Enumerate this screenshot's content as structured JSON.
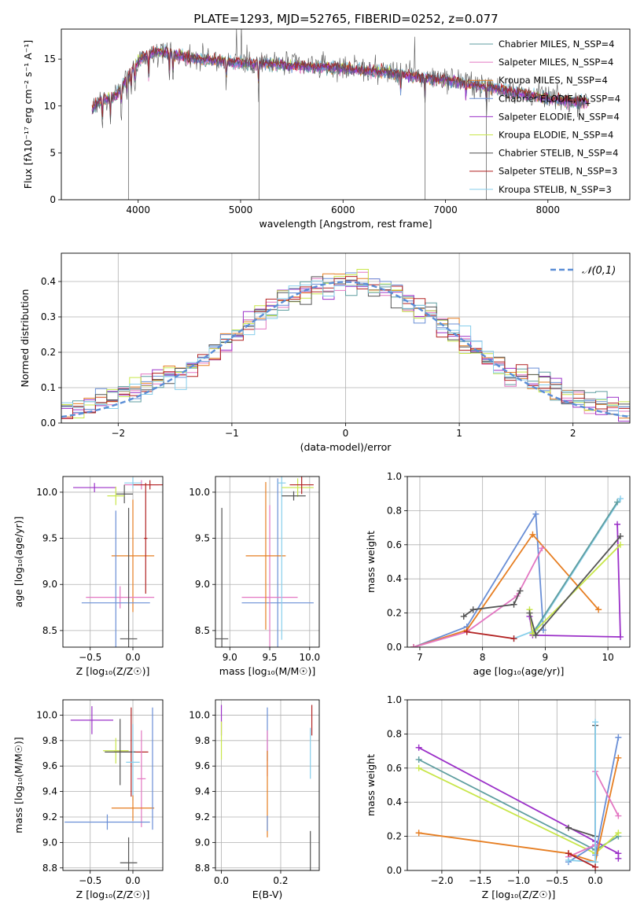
{
  "figure_title": "PLATE=1293, MJD=52765, FIBERID=0252, z=0.077",
  "colors": {
    "series": [
      "#5f9ea0",
      "#e377c2",
      "#e67e22",
      "#6a8fd6",
      "#9b30c8",
      "#c8e64a",
      "#555555",
      "#b22222",
      "#87ceeb"
    ],
    "normal": "#5b8ed6"
  },
  "chart_data": [
    {
      "id": "spectrum",
      "type": "line",
      "xlabel": "wavelength [Angstrom, rest frame]",
      "ylabel": "Flux [fλ10⁻¹⁷ erg cm⁻² s⁻¹ A⁻¹]",
      "xlim": [
        3250,
        8800
      ],
      "ylim": [
        0,
        18.2
      ],
      "xticks": [
        4000,
        5000,
        6000,
        7000,
        8000
      ],
      "yticks": [
        0,
        5,
        10,
        15
      ],
      "grid": false,
      "legend_position": "upper-right",
      "legend": [
        "Chabrier MILES, N_SSP=4",
        "Salpeter MILES, N_SSP=4",
        "Kroupa MILES, N_SSP=4",
        "Chabrier ELODIE, N_SSP=4",
        "Salpeter ELODIE, N_SSP=4",
        "Kroupa ELODIE, N_SSP=4",
        "Chabrier STELIB, N_SSP=4",
        "Salpeter STELIB, N_SSP=3",
        "Kroupa STELIB, N_SSP=3"
      ],
      "continuum": {
        "x": [
          3550,
          3620,
          3700,
          3800,
          3900,
          4000,
          4100,
          4200,
          4300,
          4400,
          4600,
          4800,
          5000,
          5200,
          5400,
          5600,
          5800,
          6000,
          6200,
          6400,
          6600,
          6800,
          7000,
          7200,
          7400,
          7600,
          7800,
          8000,
          8200,
          8400
        ],
        "y": [
          9.6,
          10.5,
          10.8,
          11.2,
          13.2,
          14.8,
          15.5,
          15.8,
          15.6,
          15.3,
          15.0,
          14.8,
          14.6,
          14.5,
          14.4,
          14.2,
          14.1,
          14.0,
          13.8,
          13.6,
          13.3,
          13.0,
          12.8,
          12.4,
          12.0,
          11.6,
          11.2,
          10.8,
          10.5,
          10.4
        ]
      },
      "absorption_lines": [
        3650,
        3730,
        3835,
        3890,
        3933,
        3968,
        4102,
        4305,
        4340,
        4861,
        5175,
        6563,
        6800,
        7200,
        7400
      ],
      "emission_lines": [
        4959,
        5007,
        6563,
        6700,
        7200
      ]
    },
    {
      "id": "residuals",
      "type": "line",
      "xlabel": "(data-model)/error",
      "ylabel": "Normed distribution",
      "xlim": [
        -2.5,
        2.5
      ],
      "ylim": [
        0,
        0.48
      ],
      "xticks": [
        -2,
        -1,
        0,
        1,
        2
      ],
      "yticks": [
        0.0,
        0.1,
        0.2,
        0.3,
        0.4
      ],
      "grid": true,
      "legend": [
        "𝒩(0,1)"
      ],
      "legend_position": "upper-right"
    },
    {
      "id": "age_vs_Z",
      "type": "scatter",
      "xlabel": "Z [log₁₀(Z/Z☉)]",
      "ylabel": "age  [log₁₀(age/yr)]",
      "xlim": [
        -0.82,
        0.35
      ],
      "ylim": [
        8.32,
        10.17
      ],
      "xticks": [
        -0.5,
        0.0
      ],
      "yticks": [
        8.5,
        9.0,
        9.5,
        10.0
      ],
      "grid": true,
      "points": [
        {
          "s": 4,
          "x": -0.45,
          "y": 10.05,
          "xerr": 0.25,
          "yerr": 0.05
        },
        {
          "s": 1,
          "x": 0.1,
          "y": 10.08,
          "xerr": 0.2,
          "yerr": 0.05
        },
        {
          "s": 7,
          "x": 0.2,
          "y": 10.08,
          "xerr": 0.2,
          "yerr": 0.05
        },
        {
          "s": 6,
          "x": -0.1,
          "y": 9.98,
          "xerr": 0.1,
          "yerr": 0.1
        },
        {
          "s": 5,
          "x": -0.2,
          "y": 9.96,
          "xerr": 0.1,
          "yerr": 0.1
        },
        {
          "s": 8,
          "x": 0.0,
          "y": 10.1,
          "xerr": 0.1,
          "yerr": 0.06
        },
        {
          "s": 2,
          "x": 0.0,
          "y": 9.31,
          "xerr": 0.25,
          "yerr": 0.61
        },
        {
          "s": 1,
          "x": -0.15,
          "y": 8.86,
          "xerr": 0.4,
          "yerr": 0.12
        },
        {
          "s": 3,
          "x": -0.2,
          "y": 8.8,
          "xerr": 0.4,
          "yerr": 1.0
        },
        {
          "s": 6,
          "x": -0.05,
          "y": 8.41,
          "xerr": 0.1,
          "yerr": 1.42
        },
        {
          "s": 7,
          "x": 0.15,
          "y": 9.5,
          "xerr": 0.02,
          "yerr": 0.6
        }
      ]
    },
    {
      "id": "age_vs_mass",
      "type": "scatter",
      "xlabel": "mass [log₁₀(M/M☉)]",
      "ylabel": "",
      "xlim": [
        8.82,
        10.12
      ],
      "ylim": [
        8.32,
        10.17
      ],
      "xticks": [
        9.0,
        9.5,
        10.0
      ],
      "yticks": [
        8.5,
        9.0,
        9.5,
        10.0
      ],
      "grid": true,
      "points": [
        {
          "s": 6,
          "x": 8.9,
          "y": 8.41,
          "xerr": 0.08,
          "yerr": 1.42
        },
        {
          "s": 3,
          "x": 9.6,
          "y": 8.8,
          "xerr": 0.45,
          "yerr": 1.35
        },
        {
          "s": 1,
          "x": 9.5,
          "y": 8.86,
          "xerr": 0.35,
          "yerr": 1.0
        },
        {
          "s": 2,
          "x": 9.45,
          "y": 9.31,
          "xerr": 0.25,
          "yerr": 0.8
        },
        {
          "s": 8,
          "x": 9.65,
          "y": 10.1,
          "xerr": 0.05,
          "yerr": 1.7
        },
        {
          "s": 5,
          "x": 9.85,
          "y": 10.05,
          "xerr": 0.2,
          "yerr": 0.1
        },
        {
          "s": 7,
          "x": 9.9,
          "y": 10.08,
          "xerr": 0.15,
          "yerr": 0.1
        },
        {
          "s": 6,
          "x": 9.8,
          "y": 9.96,
          "xerr": 0.15,
          "yerr": 0.05
        }
      ]
    },
    {
      "id": "weight_vs_age",
      "type": "line",
      "xlabel": "age  [log₁₀(age/yr)]",
      "ylabel": "mass weight",
      "xlim": [
        6.8,
        10.35
      ],
      "ylim": [
        0.0,
        1.0
      ],
      "xticks": [
        7,
        8,
        9,
        10
      ],
      "yticks": [
        0.0,
        0.2,
        0.4,
        0.6,
        0.8,
        1.0
      ],
      "grid": true,
      "series": [
        {
          "s": 3,
          "x": [
            6.9,
            7.75,
            8.85,
            8.97
          ],
          "y": [
            0.0,
            0.12,
            0.78,
            0.1
          ]
        },
        {
          "s": 2,
          "x": [
            6.9,
            7.75,
            8.8,
            9.85
          ],
          "y": [
            0.0,
            0.1,
            0.66,
            0.22
          ]
        },
        {
          "s": 1,
          "x": [
            6.9,
            7.75,
            8.55,
            8.95
          ],
          "y": [
            0.0,
            0.09,
            0.3,
            0.58
          ]
        },
        {
          "s": 4,
          "x": [
            8.75,
            8.8,
            10.2,
            10.15
          ],
          "y": [
            0.18,
            0.07,
            0.06,
            0.72
          ]
        },
        {
          "s": 8,
          "x": [
            8.5,
            8.85,
            10.2
          ],
          "y": [
            0.05,
            0.1,
            0.87
          ]
        },
        {
          "s": 0,
          "x": [
            8.8,
            10.15
          ],
          "y": [
            0.08,
            0.85
          ]
        },
        {
          "s": 5,
          "x": [
            8.75,
            8.8,
            10.2
          ],
          "y": [
            0.22,
            0.08,
            0.6
          ]
        },
        {
          "s": 6,
          "x": [
            7.7,
            7.85,
            8.5,
            8.6
          ],
          "y": [
            0.18,
            0.22,
            0.25,
            0.33
          ]
        },
        {
          "s": 7,
          "x": [
            7.75,
            8.5
          ],
          "y": [
            0.09,
            0.05
          ]
        },
        {
          "s": 6,
          "x": [
            8.75,
            8.85,
            10.2
          ],
          "y": [
            0.2,
            0.07,
            0.65
          ]
        }
      ]
    },
    {
      "id": "mass_vs_Z",
      "type": "scatter",
      "xlabel": "Z [log₁₀(Z/Z☉)]",
      "ylabel": "mass [log₁₀(M/M☉)]",
      "xlim": [
        -0.82,
        0.35
      ],
      "ylim": [
        8.78,
        10.12
      ],
      "xticks": [
        -0.5,
        0.0
      ],
      "yticks": [
        8.8,
        9.0,
        9.2,
        9.4,
        9.6,
        9.8,
        10.0
      ],
      "grid": true,
      "points": [
        {
          "s": 4,
          "x": -0.48,
          "y": 9.96,
          "xerr": 0.25,
          "yerr": 0.11
        },
        {
          "s": 7,
          "x": -0.02,
          "y": 9.71,
          "xerr": 0.2,
          "yerr": 0.35
        },
        {
          "s": 5,
          "x": -0.2,
          "y": 9.72,
          "xerr": 0.15,
          "yerr": 0.1
        },
        {
          "s": 6,
          "x": -0.15,
          "y": 9.71,
          "xerr": 0.18,
          "yerr": 0.26
        },
        {
          "s": 8,
          "x": 0.0,
          "y": 9.63,
          "xerr": 0.08,
          "yerr": 0.3
        },
        {
          "s": 1,
          "x": 0.1,
          "y": 9.5,
          "xerr": 0.05,
          "yerr": 0.38
        },
        {
          "s": 2,
          "x": 0.0,
          "y": 9.27,
          "xerr": 0.25,
          "yerr": 0.1
        },
        {
          "s": 3,
          "x": -0.3,
          "y": 9.16,
          "xerr": 0.5,
          "yerr": 0.06
        },
        {
          "s": 3,
          "x": 0.23,
          "y": 9.58,
          "xerr": 0.0,
          "yerr": 0.48
        },
        {
          "s": 6,
          "x": -0.05,
          "y": 8.84,
          "xerr": 0.1,
          "yerr": 0.2
        }
      ]
    },
    {
      "id": "mass_vs_EBV",
      "type": "scatter",
      "xlabel": "E(B-V)",
      "ylabel": "",
      "xlim": [
        -0.02,
        0.33
      ],
      "ylim": [
        8.78,
        10.12
      ],
      "xticks": [
        0.0,
        0.2
      ],
      "yticks": [
        8.8,
        9.0,
        9.2,
        9.4,
        9.6,
        9.8,
        10.0
      ],
      "grid": true,
      "points": [
        {
          "s": 4,
          "x": 0.0,
          "y": 9.96,
          "xerr": 0.0,
          "yerr": 0.12
        },
        {
          "s": 5,
          "x": 0.0,
          "y": 9.8,
          "xerr": 0.0,
          "yerr": 0.15
        },
        {
          "s": 3,
          "x": 0.155,
          "y": 9.85,
          "xerr": 0.0,
          "yerr": 0.21
        },
        {
          "s": 1,
          "x": 0.155,
          "y": 9.7,
          "xerr": 0.0,
          "yerr": 0.18
        },
        {
          "s": 2,
          "x": 0.155,
          "y": 9.38,
          "xerr": 0.0,
          "yerr": 0.34
        },
        {
          "s": 3,
          "x": 0.155,
          "y": 9.15,
          "xerr": 0.0,
          "yerr": 0.06
        },
        {
          "s": 7,
          "x": 0.305,
          "y": 9.96,
          "xerr": 0.0,
          "yerr": 0.12
        },
        {
          "s": 8,
          "x": 0.3,
          "y": 9.7,
          "xerr": 0.0,
          "yerr": 0.2
        },
        {
          "s": 6,
          "x": 0.3,
          "y": 8.92,
          "xerr": 0.0,
          "yerr": 0.17
        }
      ]
    },
    {
      "id": "weight_vs_Z",
      "type": "line",
      "xlabel": "Z [log₁₀(Z/Z☉)]",
      "ylabel": "mass weight",
      "xlim": [
        -2.45,
        0.45
      ],
      "ylim": [
        0.0,
        1.0
      ],
      "xticks": [
        -2.0,
        -1.5,
        -1.0,
        -0.5,
        0.0
      ],
      "yticks": [
        0.0,
        0.2,
        0.4,
        0.6,
        0.8,
        1.0
      ],
      "grid": true,
      "series": [
        {
          "s": 4,
          "x": [
            -2.3,
            0.0,
            0.3,
            0.3
          ],
          "y": [
            0.72,
            0.17,
            0.1,
            0.07
          ]
        },
        {
          "s": 0,
          "x": [
            -2.3,
            0.0,
            0.3
          ],
          "y": [
            0.65,
            0.12,
            0.2
          ]
        },
        {
          "s": 5,
          "x": [
            -2.3,
            0.0,
            0.3
          ],
          "y": [
            0.6,
            0.1,
            0.22
          ]
        },
        {
          "s": 2,
          "x": [
            -2.3,
            -0.35,
            0.0,
            0.3
          ],
          "y": [
            0.22,
            0.1,
            0.05,
            0.66
          ]
        },
        {
          "s": 3,
          "x": [
            -0.35,
            0.0,
            0.0,
            0.3
          ],
          "y": [
            0.05,
            0.15,
            0.09,
            0.78
          ]
        },
        {
          "s": 1,
          "x": [
            -0.35,
            0.0,
            0.0,
            0.3
          ],
          "y": [
            0.08,
            0.15,
            0.58,
            0.32
          ]
        },
        {
          "s": 6,
          "x": [
            -0.35,
            0.0,
            0.0
          ],
          "y": [
            0.25,
            0.2,
            0.85
          ]
        },
        {
          "s": 8,
          "x": [
            -0.35,
            0.0,
            0.0
          ],
          "y": [
            0.06,
            0.05,
            0.87
          ]
        },
        {
          "s": 7,
          "x": [
            -0.35,
            0.0
          ],
          "y": [
            0.1,
            0.02
          ]
        }
      ]
    }
  ]
}
